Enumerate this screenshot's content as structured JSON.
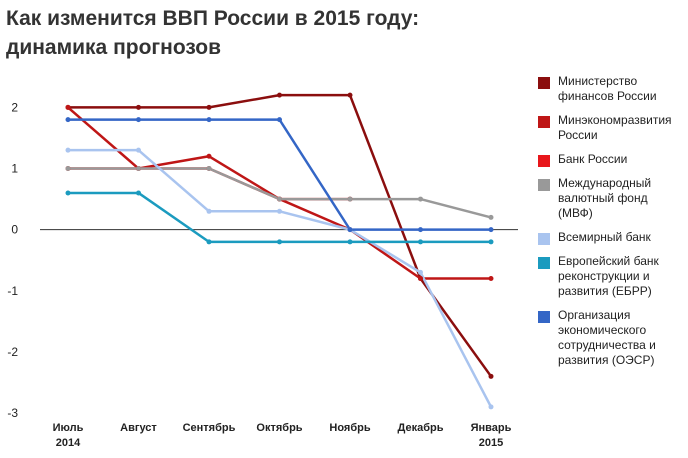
{
  "title_lines": [
    "Как изменится ВВП России в 2015 году:",
    "динамика прогнозов"
  ],
  "chart_data": {
    "type": "line",
    "title": "Как изменится ВВП России в 2015 году: динамика прогнозов",
    "categories": [
      {
        "line1": "Июль",
        "line2": "2014"
      },
      {
        "line1": "Август",
        "line2": ""
      },
      {
        "line1": "Сентябрь",
        "line2": ""
      },
      {
        "line1": "Октябрь",
        "line2": ""
      },
      {
        "line1": "Ноябрь",
        "line2": ""
      },
      {
        "line1": "Декабрь",
        "line2": ""
      },
      {
        "line1": "Январь",
        "line2": "2015"
      }
    ],
    "y_ticks": [
      "2",
      "1",
      "0",
      "-1",
      "-2",
      "-3"
    ],
    "ylim": [
      -3,
      2.35
    ],
    "legend_position": "right",
    "grid": false,
    "series": [
      {
        "name_lines": [
          "Министерство",
          "финансов России"
        ],
        "color": "#8b0e0e",
        "values": [
          2.0,
          2.0,
          2.0,
          2.2,
          2.2,
          -0.8,
          -2.4
        ]
      },
      {
        "name_lines": [
          "Минэкономразвития",
          "России"
        ],
        "color": "#bf1616",
        "values": [
          2.0,
          1.0,
          1.2,
          0.5,
          0.0,
          -0.8,
          -0.8
        ]
      },
      {
        "name_lines": [
          "Банк России"
        ],
        "color": "#e8161b",
        "values": [
          1.0,
          1.0,
          1.0,
          0.5,
          0.5,
          null,
          null
        ]
      },
      {
        "name_lines": [
          "Международный",
          "валютный фонд",
          "(МВФ)"
        ],
        "color": "#999999",
        "values": [
          1.0,
          1.0,
          1.0,
          0.5,
          0.5,
          0.5,
          0.2
        ]
      },
      {
        "name_lines": [
          "Всемирный банк"
        ],
        "color": "#a9c4ef",
        "values": [
          1.3,
          1.3,
          0.3,
          0.3,
          0.0,
          -0.7,
          -2.9
        ]
      },
      {
        "name_lines": [
          "Европейский банк",
          "реконструкции и",
          "развития (ЕБРР)"
        ],
        "color": "#1b9bbf",
        "values": [
          0.6,
          0.6,
          -0.2,
          -0.2,
          -0.2,
          -0.2,
          -0.2
        ]
      },
      {
        "name_lines": [
          "Организация",
          "экономического",
          "сотрудничества и",
          "развития (ОЭСР)"
        ],
        "color": "#3466c6",
        "values": [
          1.8,
          1.8,
          1.8,
          1.8,
          0.0,
          0.0,
          0.0
        ]
      }
    ]
  }
}
